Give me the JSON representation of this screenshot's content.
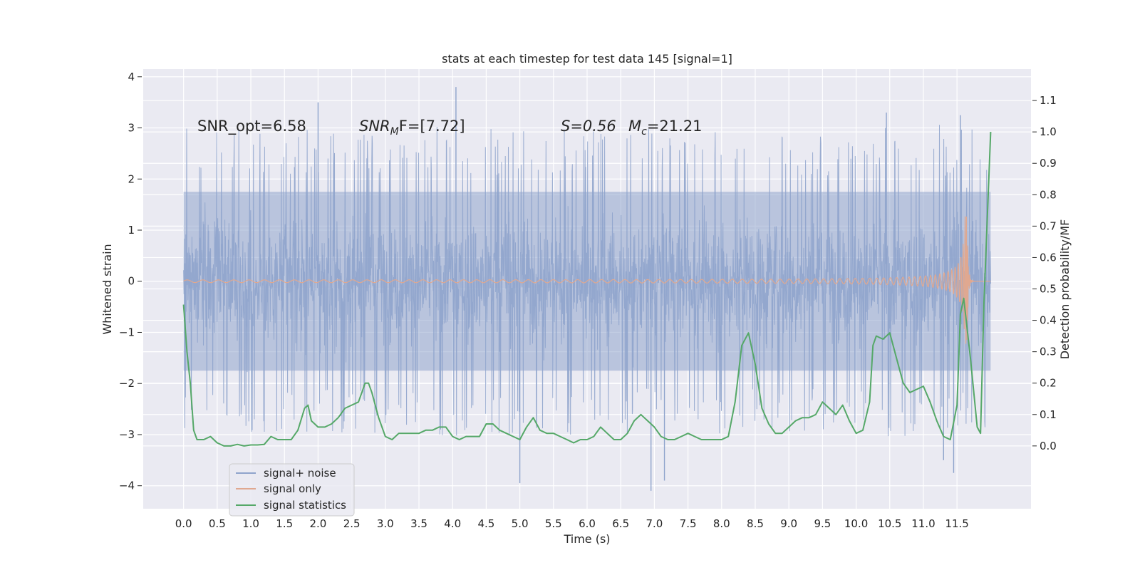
{
  "chart_data": {
    "type": "line",
    "title": "stats at each timestep for test data 145 [signal=1]",
    "xlabel": "Time (s)",
    "ylabel_left": "Whitened strain",
    "ylabel_right": "Detection probability/MF",
    "xlim": [
      -0.6,
      12.6
    ],
    "ylim_left": [
      -4.45,
      4.15
    ],
    "ylim_right": [
      -0.2,
      1.2
    ],
    "x_ticks": [
      "0.0",
      "0.5",
      "1.0",
      "1.5",
      "2.0",
      "2.5",
      "3.0",
      "3.5",
      "4.0",
      "4.5",
      "5.0",
      "5.5",
      "6.0",
      "6.5",
      "7.0",
      "7.5",
      "8.0",
      "8.5",
      "9.0",
      "9.5",
      "10.0",
      "10.5",
      "11.0",
      "11.5"
    ],
    "y_left_ticks": [
      "4",
      "3",
      "2",
      "1",
      "0",
      "−1",
      "−2",
      "−3",
      "−4"
    ],
    "y_right_ticks": [
      "1.1",
      "1.0",
      "0.9",
      "0.8",
      "0.7",
      "0.6",
      "0.5",
      "0.4",
      "0.3",
      "0.2",
      "0.1",
      "0.0"
    ],
    "annotations": {
      "snr_opt": "SNR_opt=6.58",
      "snr_mf_main": "SNR",
      "snr_mf_sub": "M",
      "snr_mf_rest": "F=[7.72]",
      "s_value": "S=0.56",
      "mc_main": "M",
      "mc_sub": "c",
      "mc_rest": "=21.21"
    },
    "legend": {
      "placement": "lower-left",
      "entries": [
        "signal+ noise",
        "signal only",
        "signal statistics"
      ]
    },
    "colors": {
      "noise": "#8fa4cc",
      "signal": "#e0a890",
      "stats": "#55a868",
      "background": "#eaeaf2",
      "grid": "#ffffff"
    },
    "series": [
      {
        "name": "signal statistics",
        "axis": "right",
        "x": [
          0.0,
          0.05,
          0.1,
          0.15,
          0.2,
          0.3,
          0.4,
          0.5,
          0.6,
          0.7,
          0.8,
          0.9,
          1.0,
          1.1,
          1.2,
          1.3,
          1.4,
          1.5,
          1.6,
          1.7,
          1.8,
          1.85,
          1.9,
          2.0,
          2.1,
          2.2,
          2.3,
          2.4,
          2.5,
          2.6,
          2.7,
          2.75,
          2.8,
          2.9,
          3.0,
          3.1,
          3.2,
          3.3,
          3.4,
          3.5,
          3.6,
          3.7,
          3.8,
          3.9,
          4.0,
          4.1,
          4.2,
          4.3,
          4.4,
          4.5,
          4.6,
          4.7,
          4.8,
          4.9,
          5.0,
          5.1,
          5.2,
          5.3,
          5.4,
          5.5,
          5.6,
          5.7,
          5.8,
          5.9,
          6.0,
          6.1,
          6.2,
          6.3,
          6.4,
          6.5,
          6.6,
          6.7,
          6.8,
          6.85,
          6.9,
          7.0,
          7.1,
          7.2,
          7.3,
          7.4,
          7.5,
          7.6,
          7.7,
          7.8,
          7.9,
          8.0,
          8.1,
          8.2,
          8.3,
          8.4,
          8.5,
          8.6,
          8.7,
          8.8,
          8.9,
          9.0,
          9.1,
          9.2,
          9.3,
          9.4,
          9.5,
          9.6,
          9.7,
          9.8,
          9.9,
          10.0,
          10.1,
          10.2,
          10.25,
          10.3,
          10.4,
          10.45,
          10.5,
          10.6,
          10.7,
          10.8,
          10.9,
          11.0,
          11.1,
          11.2,
          11.3,
          11.4,
          11.5,
          11.55,
          11.6,
          11.7,
          11.8,
          11.85,
          11.9,
          12.0
        ],
        "values": [
          0.45,
          0.3,
          0.2,
          0.05,
          0.02,
          0.02,
          0.03,
          0.01,
          0.0,
          0.0,
          0.005,
          0.0,
          0.003,
          0.003,
          0.005,
          0.03,
          0.02,
          0.02,
          0.02,
          0.05,
          0.12,
          0.13,
          0.08,
          0.06,
          0.06,
          0.07,
          0.09,
          0.12,
          0.13,
          0.14,
          0.2,
          0.2,
          0.17,
          0.09,
          0.03,
          0.02,
          0.04,
          0.04,
          0.04,
          0.04,
          0.05,
          0.05,
          0.06,
          0.06,
          0.03,
          0.02,
          0.03,
          0.03,
          0.03,
          0.07,
          0.07,
          0.05,
          0.04,
          0.03,
          0.02,
          0.06,
          0.09,
          0.05,
          0.04,
          0.04,
          0.03,
          0.02,
          0.01,
          0.02,
          0.02,
          0.03,
          0.06,
          0.04,
          0.02,
          0.02,
          0.04,
          0.08,
          0.1,
          0.09,
          0.08,
          0.06,
          0.03,
          0.02,
          0.02,
          0.03,
          0.04,
          0.03,
          0.02,
          0.02,
          0.02,
          0.02,
          0.03,
          0.14,
          0.32,
          0.36,
          0.26,
          0.12,
          0.07,
          0.04,
          0.04,
          0.06,
          0.08,
          0.09,
          0.09,
          0.1,
          0.14,
          0.12,
          0.1,
          0.13,
          0.08,
          0.04,
          0.05,
          0.14,
          0.32,
          0.35,
          0.34,
          0.35,
          0.36,
          0.28,
          0.2,
          0.17,
          0.18,
          0.19,
          0.14,
          0.08,
          0.03,
          0.02,
          0.13,
          0.42,
          0.47,
          0.28,
          0.06,
          0.04,
          0.45,
          1.0
        ]
      },
      {
        "name": "signal only",
        "axis": "left",
        "description_values": "chirp waveform, amplitude ≈ 0.02 growing to ≈ 1.27 at 11.65 s",
        "x_start": 0.0,
        "x_merger": 11.65,
        "x_end": 12.0,
        "peak_amplitude": 1.27
      },
      {
        "name": "signal+ noise",
        "axis": "left",
        "x_start": 0.0,
        "x_end": 12.0,
        "typical_range": [
          -2.3,
          2.3
        ],
        "extremes": [
          {
            "x": 2.0,
            "y": 3.5
          },
          {
            "x": 4.05,
            "y": 3.8
          },
          {
            "x": 5.0,
            "y": -3.95
          },
          {
            "x": 6.95,
            "y": -4.1
          },
          {
            "x": 7.15,
            "y": -3.9
          },
          {
            "x": 11.3,
            "y": -3.5
          },
          {
            "x": 11.45,
            "y": -3.75
          },
          {
            "x": 11.55,
            "y": 3.25
          },
          {
            "x": 10.45,
            "y": 3.3
          }
        ]
      }
    ]
  }
}
